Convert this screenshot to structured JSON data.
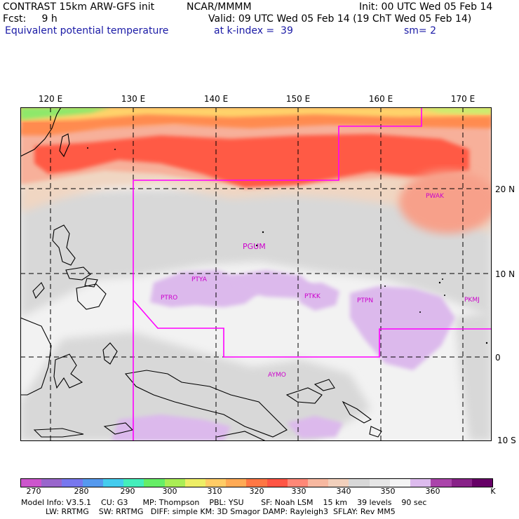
{
  "header": {
    "line1_left": "CONTRAST 15km ARW-GFS init",
    "line1_mid": "NCAR/MMMM",
    "line1_right": "Init: 00 UTC Wed 05 Feb 14",
    "line2_left": "Fcst:     9 h",
    "line2_right": "Valid: 09 UTC Wed 05 Feb 14 (19 ChT Wed 05 Feb 14)",
    "line3_left": "Equivalent potential temperature",
    "line3_mid": "at k-index =  39",
    "line3_right": "sm= 2"
  },
  "map": {
    "longitude_labels": [
      "120 E",
      "130 E",
      "140 E",
      "150 E",
      "160 E",
      "170 E"
    ],
    "latitude_labels": [
      "20 N",
      "10 N",
      "0",
      "10 S"
    ],
    "stations": [
      "PWAK",
      "PGUM",
      "PTYA",
      "PTRO",
      "PTKK",
      "PTPN",
      "PKMJ",
      "AYMO"
    ],
    "colors": {
      "grid": "#000000",
      "boundary": "#ff00ff",
      "station": "#cc00cc",
      "coast": "#000000"
    }
  },
  "colorbar": {
    "tick_labels": [
      "270",
      "280",
      "290",
      "300",
      "310",
      "320",
      "330",
      "340",
      "350",
      "360"
    ],
    "unit": "K",
    "colors": [
      "#cc55cc",
      "#9966cc",
      "#7777ee",
      "#5599ee",
      "#44ccee",
      "#44eebb",
      "#66ee66",
      "#aaee55",
      "#eeee66",
      "#ffcc66",
      "#ffaa55",
      "#ff7744",
      "#ff5544",
      "#ff8877",
      "#f7b8a0",
      "#f2d0bc",
      "#d8d8d8",
      "#e6e6e6",
      "#f4f4f4",
      "#ddbbee",
      "#aa44aa",
      "#882288",
      "#660066"
    ]
  },
  "footer": {
    "line1": "Model Info: V3.5.1    CU: G3      MP: Thompson    PBL: YSU       SF: Noah LSM    15 km    39 levels    90 sec",
    "line2": "          LW: RRTMG    SW: RRTMG   DIFF: simple KM: 3D Smagor DAMP: Rayleigh3  SFLAY: Rev MM5"
  }
}
